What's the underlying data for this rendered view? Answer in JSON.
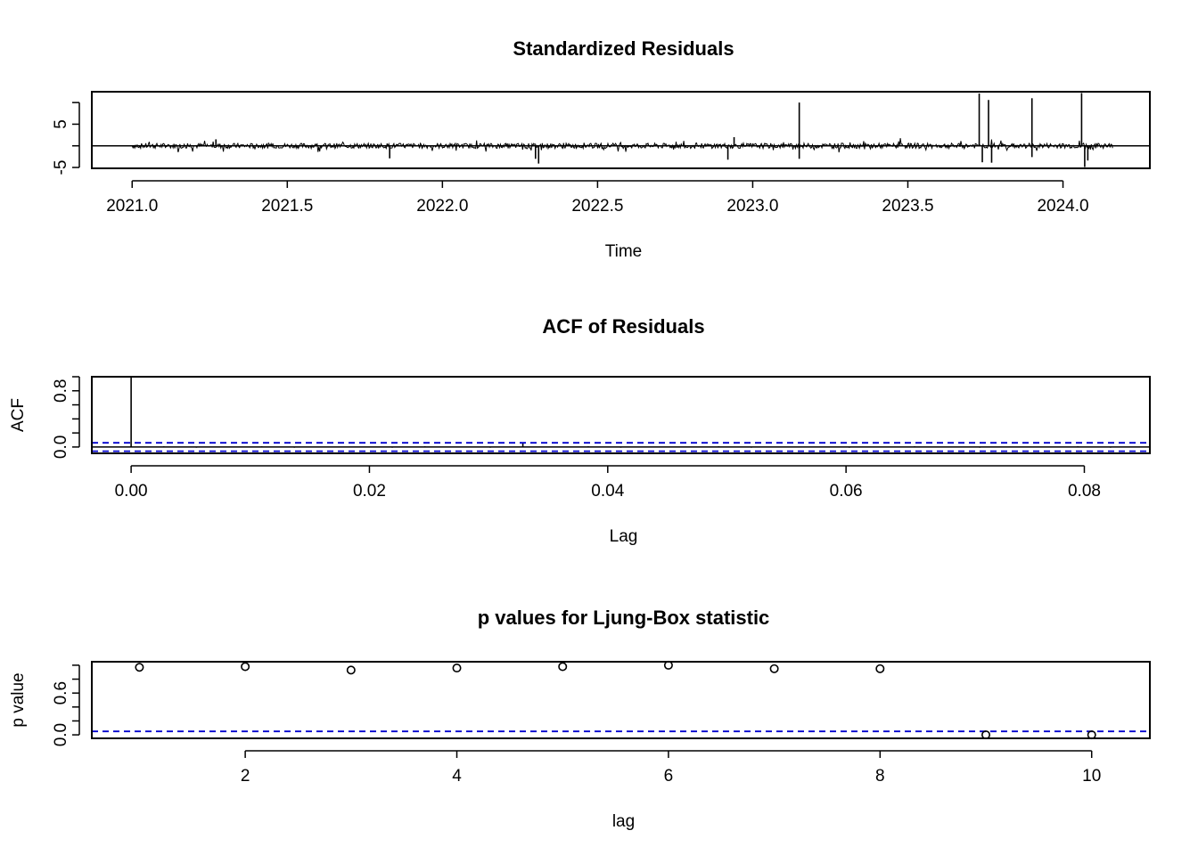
{
  "chart_data": [
    {
      "type": "line",
      "title": "Standardized Residuals",
      "xlabel": "Time",
      "ylabel": "",
      "xlim": [
        2020.87,
        2024.28
      ],
      "ylim": [
        -5.2,
        12.5
      ],
      "xticks": [
        2021.0,
        2021.5,
        2022.0,
        2022.5,
        2023.0,
        2023.5,
        2024.0
      ],
      "xtick_labels": [
        "2021.0",
        "2021.5",
        "2022.0",
        "2022.5",
        "2023.0",
        "2023.5",
        "2024.0"
      ],
      "yticks": [
        -5,
        0,
        5,
        10
      ],
      "ytick_labels": [
        "-5",
        "",
        "5",
        ""
      ],
      "hline": 0,
      "x_start": 2021.0,
      "x_end": 2024.16,
      "spikes": [
        {
          "x": 2021.27,
          "y": 1.5
        },
        {
          "x": 2021.83,
          "y": -2.9
        },
        {
          "x": 2022.3,
          "y": -3.0
        },
        {
          "x": 2022.31,
          "y": -4.1
        },
        {
          "x": 2022.92,
          "y": -3.2
        },
        {
          "x": 2022.94,
          "y": 2.0
        },
        {
          "x": 2023.15,
          "y": 10.0
        },
        {
          "x": 2023.15,
          "y": -3.0
        },
        {
          "x": 2023.73,
          "y": 12.1
        },
        {
          "x": 2023.74,
          "y": -3.8
        },
        {
          "x": 2023.76,
          "y": 10.6
        },
        {
          "x": 2023.77,
          "y": -3.9
        },
        {
          "x": 2023.9,
          "y": 11.0
        },
        {
          "x": 2023.9,
          "y": -2.6
        },
        {
          "x": 2024.06,
          "y": 12.2
        },
        {
          "x": 2024.07,
          "y": -4.9
        },
        {
          "x": 2024.08,
          "y": -3.4
        }
      ]
    },
    {
      "type": "bar",
      "title": "ACF of Residuals",
      "xlabel": "Lag",
      "ylabel": "ACF",
      "xlim": [
        -0.0033,
        0.0855
      ],
      "ylim": [
        -0.09,
        1.0
      ],
      "xticks": [
        0.0,
        0.02,
        0.04,
        0.06,
        0.08
      ],
      "xtick_labels": [
        "0.00",
        "0.02",
        "0.04",
        "0.06",
        "0.08"
      ],
      "yticks": [
        0.0,
        0.2,
        0.4,
        0.6,
        0.8,
        1.0
      ],
      "ytick_labels": [
        "0.0",
        "",
        "",
        "",
        "0.8",
        ""
      ],
      "lag_step": 0.002739726,
      "lags": 31,
      "values": [
        1.0,
        0.01,
        -0.01,
        0.0,
        0.01,
        -0.01,
        0.0,
        0.0,
        -0.01,
        0.01,
        0.0,
        -0.01,
        0.05,
        0.0,
        0.01,
        -0.01,
        0.0,
        0.0,
        0.01,
        -0.01,
        0.0,
        0.0,
        -0.01,
        0.0,
        0.01,
        0.0,
        -0.01,
        0.0,
        0.0,
        0.01,
        -0.01
      ],
      "conf_bounds": [
        0.06,
        -0.06
      ]
    },
    {
      "type": "scatter",
      "title": "p values for Ljung-Box statistic",
      "xlabel": "lag",
      "ylabel": "p value",
      "xlim": [
        0.55,
        10.55
      ],
      "ylim": [
        -0.05,
        1.05
      ],
      "xticks": [
        2,
        4,
        6,
        8,
        10
      ],
      "xtick_labels": [
        "2",
        "4",
        "6",
        "8",
        "10"
      ],
      "yticks": [
        0.0,
        0.2,
        0.4,
        0.6,
        0.8,
        1.0
      ],
      "ytick_labels": [
        "0.0",
        "",
        "",
        "0.6",
        "",
        ""
      ],
      "x": [
        1,
        2,
        3,
        4,
        5,
        6,
        7,
        8,
        9,
        10
      ],
      "y": [
        0.97,
        0.98,
        0.93,
        0.96,
        0.98,
        1.0,
        0.95,
        0.95,
        0.0,
        0.0
      ],
      "threshold": 0.05
    }
  ]
}
